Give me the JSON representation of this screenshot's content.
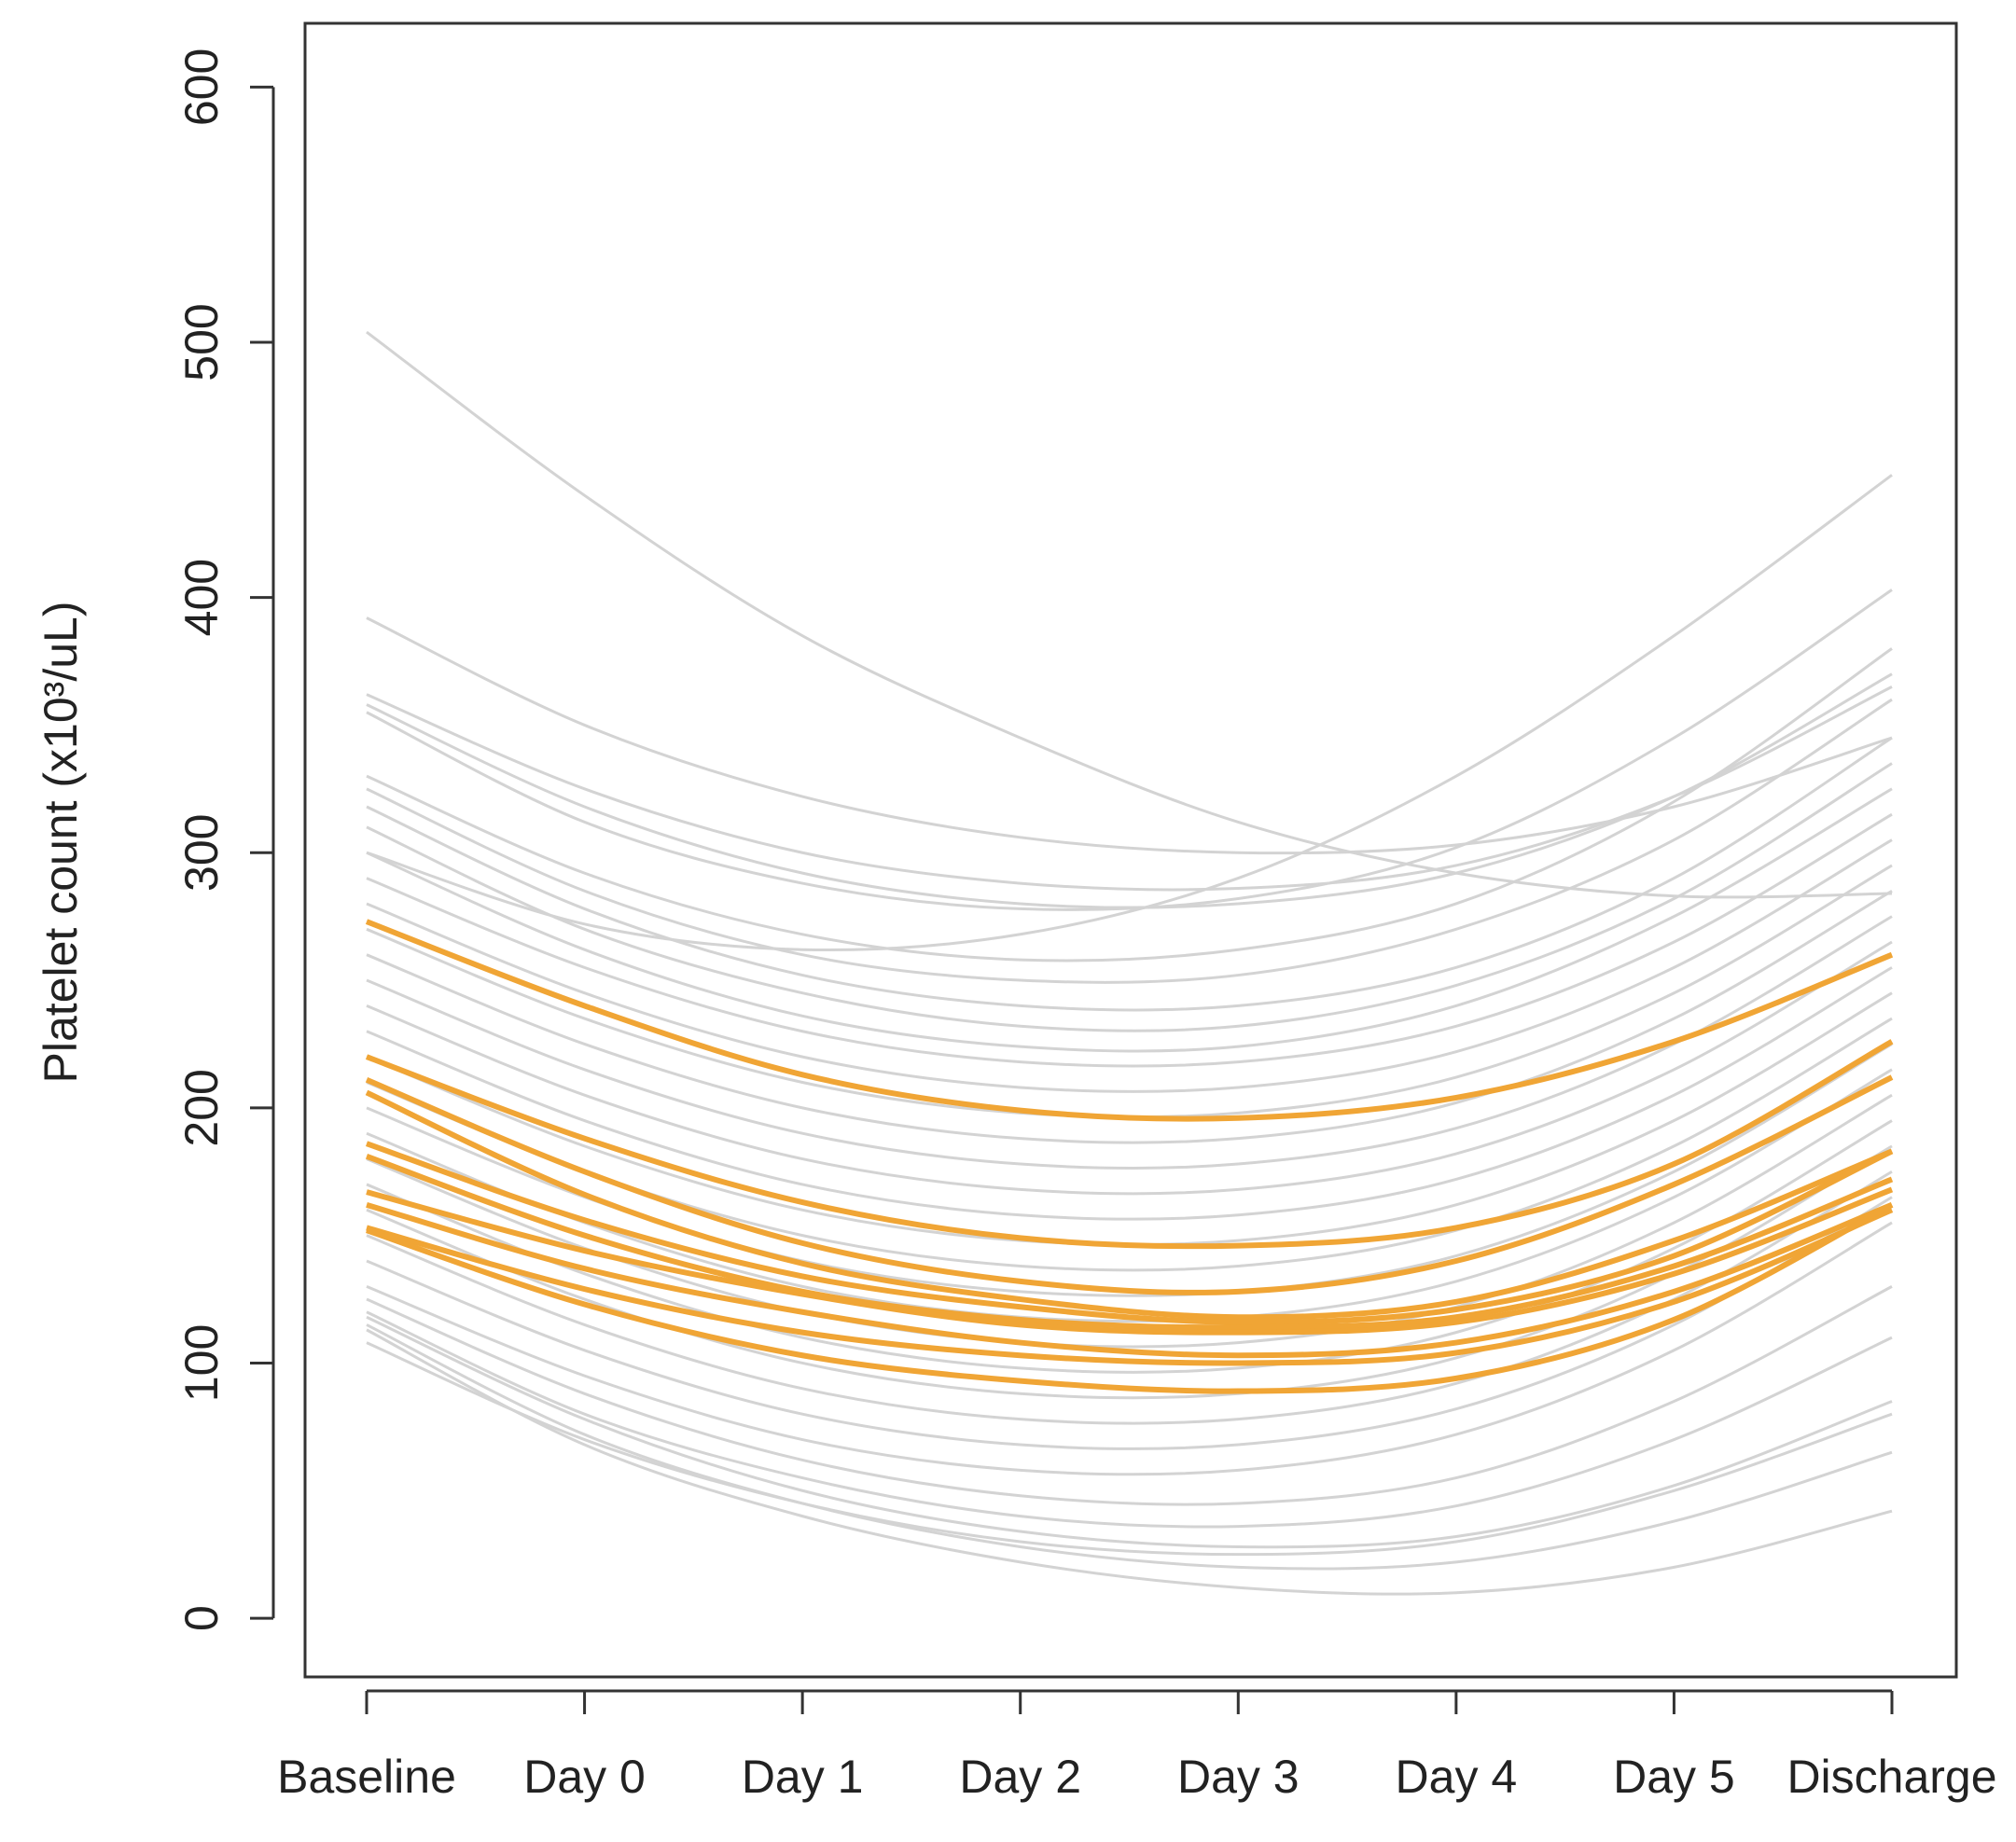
{
  "chart_data": {
    "type": "line",
    "y_label": "Platelet count (x10³/uL)",
    "categories": [
      "Baseline",
      "Day 0",
      "Day 1",
      "Day 2",
      "Day 3",
      "Day 4",
      "Day 5",
      "Discharge"
    ],
    "ylim": [
      -23,
      625
    ],
    "yticks": [
      0,
      100,
      200,
      300,
      400,
      500,
      600
    ],
    "series": [
      {
        "color": "#d3d3d3",
        "values": [
          504,
          440,
          385,
          345,
          312,
          292,
          283,
          284
        ]
      },
      {
        "color": "#d3d3d3",
        "values": [
          392,
          350,
          322,
          306,
          300,
          303,
          318,
          345
        ]
      },
      {
        "color": "#d3d3d3",
        "values": [
          362,
          325,
          300,
          288,
          286,
          295,
          322,
          365
        ]
      },
      {
        "color": "#d3d3d3",
        "values": [
          358,
          318,
          292,
          280,
          280,
          292,
          322,
          370
        ]
      },
      {
        "color": "#d3d3d3",
        "values": [
          355,
          312,
          288,
          278,
          282,
          302,
          345,
          403
        ]
      },
      {
        "color": "#d3d3d3",
        "values": [
          300,
          272,
          262,
          268,
          290,
          330,
          385,
          448
        ]
      },
      {
        "color": "#d3d3d3",
        "values": [
          330,
          292,
          268,
          258,
          262,
          280,
          320,
          380
        ]
      },
      {
        "color": "#d3d3d3",
        "values": [
          325,
          285,
          260,
          250,
          252,
          270,
          305,
          360
        ]
      },
      {
        "color": "#d3d3d3",
        "values": [
          318,
          278,
          252,
          240,
          240,
          255,
          290,
          345
        ]
      },
      {
        "color": "#d3d3d3",
        "values": [
          310,
          270,
          245,
          232,
          232,
          248,
          282,
          335
        ]
      },
      {
        "color": "#d3d3d3",
        "values": [
          300,
          262,
          236,
          224,
          224,
          240,
          275,
          325
        ]
      },
      {
        "color": "#d3d3d3",
        "values": [
          290,
          255,
          230,
          218,
          218,
          232,
          265,
          315
        ]
      },
      {
        "color": "#d3d3d3",
        "values": [
          280,
          245,
          220,
          208,
          208,
          222,
          255,
          305
        ]
      },
      {
        "color": "#d3d3d3",
        "values": [
          270,
          235,
          210,
          198,
          198,
          212,
          245,
          295
        ]
      },
      {
        "color": "#d3d3d3",
        "values": [
          260,
          225,
          200,
          188,
          188,
          202,
          235,
          285
        ]
      },
      {
        "color": "#d3d3d3",
        "values": [
          250,
          215,
          190,
          178,
          178,
          192,
          225,
          275
        ]
      },
      {
        "color": "#d3d3d3",
        "values": [
          240,
          205,
          180,
          168,
          168,
          182,
          215,
          265
        ]
      },
      {
        "color": "#d3d3d3",
        "values": [
          230,
          195,
          170,
          158,
          158,
          172,
          205,
          255
        ]
      },
      {
        "color": "#d3d3d3",
        "values": [
          220,
          185,
          160,
          148,
          148,
          162,
          195,
          245
        ]
      },
      {
        "color": "#d3d3d3",
        "values": [
          210,
          175,
          150,
          138,
          138,
          152,
          185,
          235
        ]
      },
      {
        "color": "#d3d3d3",
        "values": [
          200,
          165,
          140,
          128,
          128,
          142,
          175,
          225
        ]
      },
      {
        "color": "#d3d3d3",
        "values": [
          190,
          155,
          130,
          118,
          118,
          132,
          165,
          215
        ]
      },
      {
        "color": "#d3d3d3",
        "values": [
          180,
          145,
          120,
          108,
          108,
          122,
          155,
          205
        ]
      },
      {
        "color": "#d3d3d3",
        "values": [
          170,
          135,
          110,
          98,
          98,
          112,
          145,
          195
        ]
      },
      {
        "color": "#d3d3d3",
        "values": [
          160,
          125,
          100,
          88,
          88,
          102,
          135,
          185
        ]
      },
      {
        "color": "#d3d3d3",
        "values": [
          150,
          115,
          90,
          78,
          78,
          92,
          125,
          175
        ]
      },
      {
        "color": "#d3d3d3",
        "values": [
          140,
          105,
          80,
          68,
          68,
          82,
          115,
          165
        ]
      },
      {
        "color": "#d3d3d3",
        "values": [
          130,
          95,
          70,
          58,
          58,
          72,
          105,
          155
        ]
      },
      {
        "color": "#d3d3d3",
        "values": [
          125,
          88,
          62,
          48,
          45,
          55,
          85,
          130
        ]
      },
      {
        "color": "#d3d3d3",
        "values": [
          120,
          80,
          55,
          40,
          36,
          44,
          70,
          110
        ]
      },
      {
        "color": "#d3d3d3",
        "values": [
          118,
          78,
          50,
          34,
          28,
          32,
          52,
          85
        ]
      },
      {
        "color": "#d3d3d3",
        "values": [
          115,
          72,
          45,
          28,
          20,
          22,
          38,
          65
        ]
      },
      {
        "color": "#d3d3d3",
        "values": [
          113,
          68,
          40,
          22,
          12,
          10,
          20,
          42
        ]
      },
      {
        "color": "#d3d3d3",
        "values": [
          108,
          70,
          45,
          30,
          25,
          30,
          50,
          80
        ]
      },
      {
        "color": "#f0a535",
        "values": [
          273,
          240,
          213,
          199,
          196,
          204,
          226,
          260
        ]
      },
      {
        "color": "#f0a535",
        "values": [
          220,
          188,
          163,
          149,
          146,
          153,
          178,
          226
        ]
      },
      {
        "color": "#f0a535",
        "values": [
          211,
          175,
          147,
          132,
          128,
          140,
          170,
          212
        ]
      },
      {
        "color": "#f0a535",
        "values": [
          206,
          166,
          139,
          125,
          118,
          124,
          148,
          183
        ]
      },
      {
        "color": "#f0a535",
        "values": [
          186,
          156,
          134,
          122,
          116,
          121,
          142,
          183
        ]
      },
      {
        "color": "#f0a535",
        "values": [
          181,
          150,
          128,
          117,
          114,
          118,
          138,
          172
        ]
      },
      {
        "color": "#f0a535",
        "values": [
          167,
          144,
          127,
          115,
          112,
          116,
          135,
          168
        ]
      },
      {
        "color": "#f0a535",
        "values": [
          162,
          137,
          120,
          108,
          103,
          108,
          128,
          162
        ]
      },
      {
        "color": "#f0a535",
        "values": [
          153,
          129,
          112,
          103,
          100,
          104,
          124,
          160
        ]
      },
      {
        "color": "#f0a535",
        "values": [
          152,
          123,
          103,
          93,
          89,
          94,
          117,
          162
        ]
      }
    ]
  }
}
